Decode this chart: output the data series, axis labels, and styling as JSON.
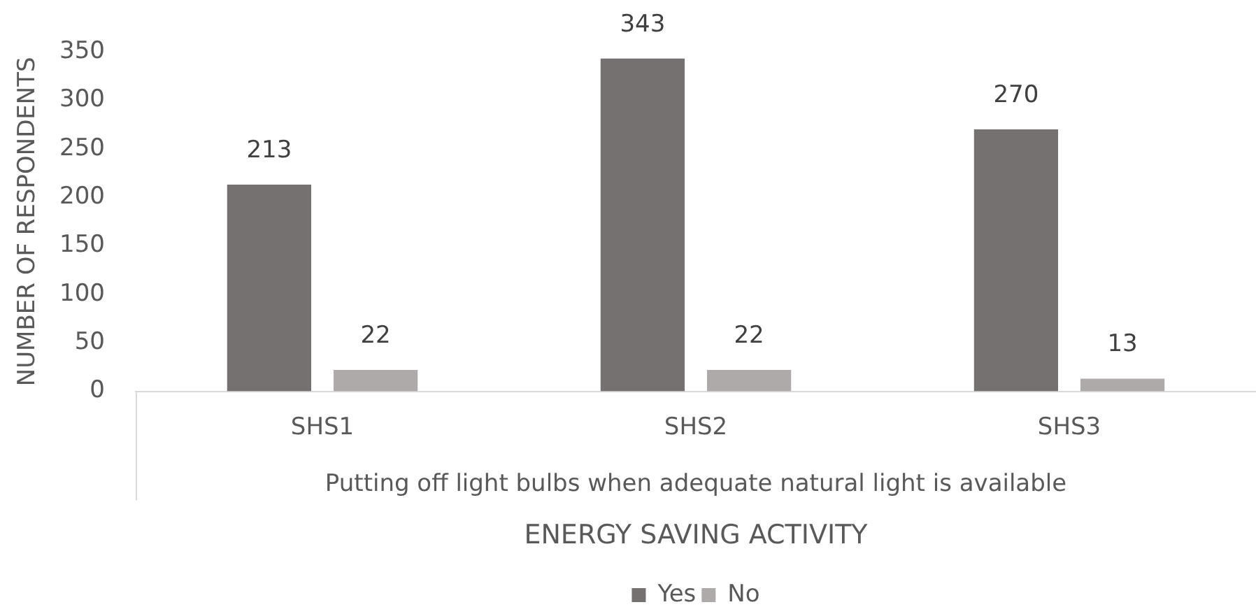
{
  "chart_data": {
    "type": "bar",
    "xlabel": "ENERGY SAVING ACTIVITY",
    "ylabel": "NUMBER OF RESPONDENTS",
    "categories": [
      "SHS1",
      "SHS2",
      "SHS3"
    ],
    "series": [
      {
        "name": "Yes",
        "color": "#767171",
        "values": [
          213,
          343,
          270
        ]
      },
      {
        "name": "No",
        "color": "#aeaaaa",
        "values": [
          22,
          22,
          13
        ]
      }
    ],
    "ylim": [
      0,
      350
    ],
    "yticks": [
      0,
      50,
      100,
      150,
      200,
      250,
      300,
      350
    ],
    "grid": false,
    "legend": "bottom",
    "data_labels": true,
    "annotations": [
      "Putting off light bulbs when adequate natural light is available"
    ]
  }
}
